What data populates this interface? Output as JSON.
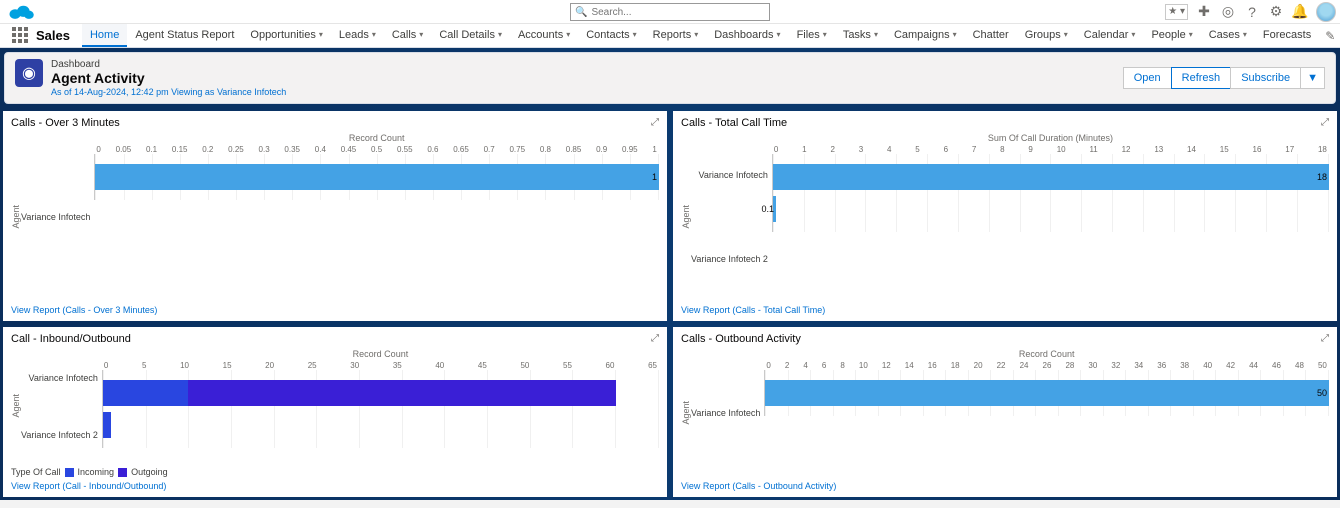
{
  "app": {
    "name": "Sales"
  },
  "search": {
    "placeholder": "Search..."
  },
  "nav": {
    "items": [
      {
        "label": "Home",
        "active": true,
        "chev": false
      },
      {
        "label": "Agent Status Report",
        "active": false,
        "chev": false
      },
      {
        "label": "Opportunities",
        "active": false,
        "chev": true
      },
      {
        "label": "Leads",
        "active": false,
        "chev": true
      },
      {
        "label": "Calls",
        "active": false,
        "chev": true
      },
      {
        "label": "Call Details",
        "active": false,
        "chev": true
      },
      {
        "label": "Accounts",
        "active": false,
        "chev": true
      },
      {
        "label": "Contacts",
        "active": false,
        "chev": true
      },
      {
        "label": "Reports",
        "active": false,
        "chev": true
      },
      {
        "label": "Dashboards",
        "active": false,
        "chev": true
      },
      {
        "label": "Files",
        "active": false,
        "chev": true
      },
      {
        "label": "Tasks",
        "active": false,
        "chev": true
      },
      {
        "label": "Campaigns",
        "active": false,
        "chev": true
      },
      {
        "label": "Chatter",
        "active": false,
        "chev": false
      },
      {
        "label": "Groups",
        "active": false,
        "chev": true
      },
      {
        "label": "Calendar",
        "active": false,
        "chev": true
      },
      {
        "label": "People",
        "active": false,
        "chev": true
      },
      {
        "label": "Cases",
        "active": false,
        "chev": true
      },
      {
        "label": "Forecasts",
        "active": false,
        "chev": false
      }
    ]
  },
  "header": {
    "type_label": "Dashboard",
    "title": "Agent Activity",
    "sub": "As of 14-Aug-2024, 12:42 pm Viewing as Variance Infotech",
    "btn_open": "Open",
    "btn_refresh": "Refresh",
    "btn_sub": "Subscribe"
  },
  "charts": {
    "c1": {
      "title": "Calls - Over 3 Minutes",
      "type": "bar-horizontal",
      "x_title": "Record Count",
      "x_ticks": [
        "0",
        "0.05",
        "0.1",
        "0.15",
        "0.2",
        "0.25",
        "0.3",
        "0.35",
        "0.4",
        "0.45",
        "0.5",
        "0.55",
        "0.6",
        "0.65",
        "0.7",
        "0.75",
        "0.8",
        "0.85",
        "0.9",
        "0.95",
        "1"
      ],
      "x_max": 1,
      "y_label": "Agent",
      "series": [
        {
          "cat": "Variance Infotech",
          "val": 1,
          "label": "1"
        }
      ],
      "bar_color": "#44a2e5",
      "link": "View Report (Calls - Over 3 Minutes)"
    },
    "c2": {
      "title": "Calls - Total Call Time",
      "type": "bar-horizontal",
      "x_title": "Sum Of Call Duration (Minutes)",
      "x_ticks": [
        "0",
        "1",
        "2",
        "3",
        "4",
        "5",
        "6",
        "7",
        "8",
        "9",
        "10",
        "11",
        "12",
        "13",
        "14",
        "15",
        "16",
        "17",
        "18"
      ],
      "x_max": 18,
      "y_label": "Agent",
      "series": [
        {
          "cat": "Variance Infotech",
          "val": 18,
          "label": "18"
        },
        {
          "cat": "Variance Infotech 2",
          "val": 0.1,
          "label": "0.1"
        }
      ],
      "bar_color": "#44a2e5",
      "link": "View Report (Calls - Total Call Time)"
    },
    "c3": {
      "title": "Call - Inbound/Outbound",
      "type": "bar-horizontal-stacked",
      "x_title": "Record Count",
      "x_ticks": [
        "0",
        "5",
        "10",
        "15",
        "20",
        "25",
        "30",
        "35",
        "40",
        "45",
        "50",
        "55",
        "60",
        "65"
      ],
      "x_max": 65,
      "y_label": "Agent",
      "series": [
        {
          "cat": "Variance Infotech",
          "segs": [
            {
              "val": 10,
              "color": "#2946e0"
            },
            {
              "val": 50,
              "color": "#3a1fd6"
            }
          ]
        },
        {
          "cat": "Variance Infotech 2",
          "segs": [
            {
              "val": 1,
              "color": "#2946e0"
            }
          ]
        }
      ],
      "legend_title": "Type Of Call",
      "legend": [
        {
          "label": "Incoming",
          "color": "#2946e0"
        },
        {
          "label": "Outgoing",
          "color": "#3a1fd6"
        }
      ],
      "link": "View Report (Call - Inbound/Outbound)"
    },
    "c4": {
      "title": "Calls - Outbound Activity",
      "type": "bar-horizontal",
      "x_title": "Record Count",
      "x_ticks": [
        "0",
        "2",
        "4",
        "6",
        "8",
        "10",
        "12",
        "14",
        "16",
        "18",
        "20",
        "22",
        "24",
        "26",
        "28",
        "30",
        "32",
        "34",
        "36",
        "38",
        "40",
        "42",
        "44",
        "46",
        "48",
        "50"
      ],
      "x_max": 50,
      "y_label": "Agent",
      "series": [
        {
          "cat": "Variance Infotech",
          "val": 50,
          "label": "50"
        }
      ],
      "bar_color": "#44a2e5",
      "link": "View Report (Calls - Outbound Activity)"
    }
  }
}
